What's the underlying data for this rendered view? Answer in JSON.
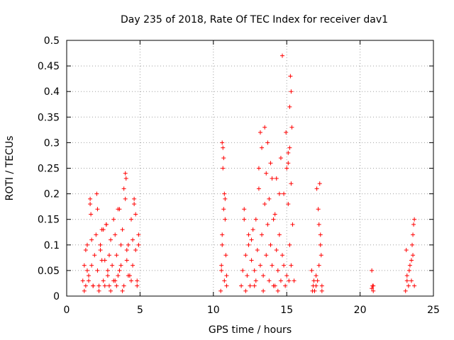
{
  "chart_data": {
    "type": "scatter",
    "title": "Day 235 of 2018, Rate Of TEC Index for receiver dav1",
    "xlabel": "GPS time / hours",
    "ylabel": "ROTI / TECUs",
    "xlim": [
      0,
      25
    ],
    "ylim": [
      0,
      0.5
    ],
    "xticks": [
      "0",
      "5",
      "10",
      "15",
      "20",
      "25"
    ],
    "yticks": [
      "0",
      "0.05",
      "0.1",
      "0.15",
      "0.2",
      "0.25",
      "0.3",
      "0.35",
      "0.4",
      "0.45",
      "0.5"
    ],
    "grid": true,
    "marker": "+",
    "color": "#ff0000",
    "series": [
      {
        "name": "ROTI",
        "x": [
          1.1,
          1.2,
          1.3,
          1.4,
          1.5,
          1.6,
          1.7,
          1.8,
          1.9,
          2.0,
          2.1,
          2.2,
          2.3,
          2.4,
          2.5,
          2.6,
          2.7,
          2.8,
          2.9,
          3.0,
          3.1,
          3.2,
          3.3,
          3.4,
          3.5,
          3.6,
          3.7,
          3.8,
          3.9,
          4.0,
          4.1,
          4.2,
          4.3,
          4.4,
          4.5,
          4.6,
          4.7,
          4.8,
          4.9,
          1.6,
          1.65,
          2.05,
          2.1,
          2.5,
          2.7,
          3.5,
          3.9,
          4.0,
          4.05,
          4.6,
          4.7,
          1.2,
          1.4,
          1.5,
          1.8,
          2.2,
          2.4,
          2.6,
          2.8,
          3.0,
          3.2,
          3.4,
          3.6,
          3.8,
          4.2,
          4.4,
          4.8,
          1.3,
          1.7,
          2.3,
          2.9,
          3.3,
          3.7,
          4.1,
          4.5,
          4.9,
          10.5,
          10.55,
          10.6,
          10.65,
          10.7,
          10.75,
          10.8,
          10.85,
          10.9,
          10.6,
          10.65,
          10.7,
          10.8,
          10.6,
          10.9,
          10.55,
          10.75,
          11.9,
          12.0,
          12.1,
          12.2,
          12.3,
          12.4,
          12.5,
          12.6,
          12.7,
          12.8,
          12.9,
          13.0,
          13.1,
          13.2,
          13.3,
          13.4,
          13.5,
          13.6,
          13.7,
          13.8,
          13.9,
          14.0,
          14.1,
          14.2,
          14.3,
          14.4,
          14.5,
          14.6,
          14.7,
          14.8,
          14.9,
          15.0,
          15.1,
          15.2,
          15.3,
          15.4,
          15.5,
          12.1,
          12.6,
          13.1,
          13.2,
          13.3,
          13.6,
          13.7,
          13.8,
          14.0,
          14.2,
          14.6,
          14.8,
          14.95,
          15.1,
          15.2,
          15.25,
          15.3,
          15.35,
          15.3,
          15.2,
          15.1,
          15.0,
          14.7,
          14.5,
          14.3,
          13.9,
          13.5,
          12.9,
          12.4,
          12.2,
          12.8,
          13.4,
          14.1,
          14.4,
          15.15,
          16.7,
          16.8,
          16.9,
          17.0,
          17.1,
          17.2,
          17.3,
          17.4,
          16.75,
          17.05,
          17.15,
          17.25,
          17.3,
          17.35,
          17.2,
          17.4,
          16.85,
          17.0,
          20.8,
          20.85,
          20.9,
          20.8,
          20.9,
          23.1,
          23.2,
          23.3,
          23.4,
          23.5,
          23.6,
          23.7,
          23.15,
          23.35,
          23.55,
          23.65,
          23.7,
          23.2,
          23.5,
          23.6
        ],
        "y": [
          0.03,
          0.06,
          0.02,
          0.1,
          0.04,
          0.18,
          0.06,
          0.02,
          0.08,
          0.12,
          0.05,
          0.02,
          0.09,
          0.13,
          0.03,
          0.07,
          0.14,
          0.05,
          0.02,
          0.11,
          0.06,
          0.15,
          0.03,
          0.08,
          0.04,
          0.17,
          0.06,
          0.13,
          0.02,
          0.19,
          0.07,
          0.1,
          0.04,
          0.15,
          0.06,
          0.18,
          0.09,
          0.03,
          0.12,
          0.19,
          0.16,
          0.2,
          0.17,
          0.13,
          0.14,
          0.17,
          0.21,
          0.24,
          0.23,
          0.19,
          0.16,
          0.01,
          0.05,
          0.03,
          0.02,
          0.01,
          0.07,
          0.02,
          0.04,
          0.01,
          0.03,
          0.02,
          0.05,
          0.01,
          0.04,
          0.03,
          0.02,
          0.09,
          0.11,
          0.1,
          0.08,
          0.12,
          0.1,
          0.09,
          0.11,
          0.1,
          0.01,
          0.05,
          0.1,
          0.29,
          0.27,
          0.2,
          0.15,
          0.08,
          0.02,
          0.3,
          0.25,
          0.17,
          0.19,
          0.12,
          0.04,
          0.06,
          0.03,
          0.02,
          0.05,
          0.15,
          0.08,
          0.04,
          0.1,
          0.02,
          0.07,
          0.13,
          0.05,
          0.03,
          0.09,
          0.21,
          0.06,
          0.12,
          0.04,
          0.18,
          0.08,
          0.14,
          0.03,
          0.1,
          0.06,
          0.15,
          0.02,
          0.09,
          0.05,
          0.12,
          0.03,
          0.08,
          0.06,
          0.02,
          0.04,
          0.18,
          0.1,
          0.06,
          0.14,
          0.03,
          0.17,
          0.11,
          0.25,
          0.32,
          0.29,
          0.24,
          0.3,
          0.19,
          0.23,
          0.16,
          0.27,
          0.2,
          0.32,
          0.26,
          0.37,
          0.43,
          0.4,
          0.33,
          0.22,
          0.29,
          0.28,
          0.25,
          0.47,
          0.2,
          0.23,
          0.26,
          0.33,
          0.15,
          0.12,
          0.01,
          0.02,
          0.01,
          0.02,
          0.01,
          0.03,
          0.05,
          0.02,
          0.01,
          0.04,
          0.03,
          0.06,
          0.1,
          0.02,
          0.01,
          0.21,
          0.17,
          0.22,
          0.12,
          0.08,
          0.14,
          0.01,
          0.03,
          0.02,
          0.05,
          0.02,
          0.01,
          0.015,
          0.02,
          0.01,
          0.04,
          0.02,
          0.06,
          0.03,
          0.08,
          0.15,
          0.09,
          0.05,
          0.1,
          0.14,
          0.02,
          0.03,
          0.07,
          0.12
        ]
      }
    ]
  }
}
